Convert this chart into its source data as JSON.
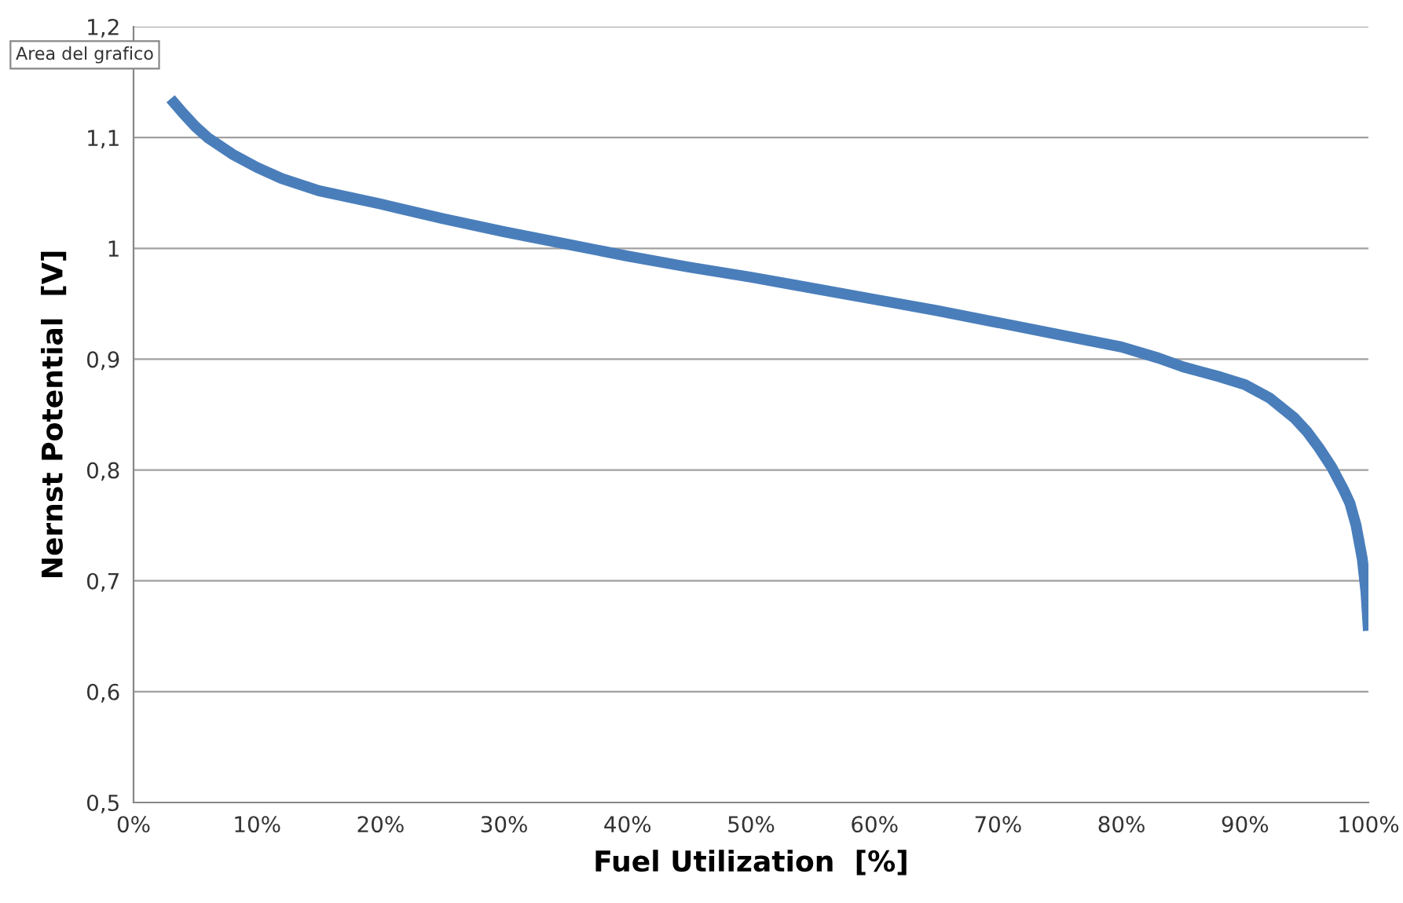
{
  "chart_data": {
    "type": "line",
    "xlabel": "Fuel Utilization  [%]",
    "ylabel": "Nernst Potential  [V]",
    "annotations": [
      "Area del grafico"
    ],
    "xlim": [
      0,
      100
    ],
    "xticks": [
      {
        "value": 0,
        "label": "0%"
      },
      {
        "value": 10,
        "label": "10%"
      },
      {
        "value": 20,
        "label": "20%"
      },
      {
        "value": 30,
        "label": "30%"
      },
      {
        "value": 40,
        "label": "40%"
      },
      {
        "value": 50,
        "label": "50%"
      },
      {
        "value": 60,
        "label": "60%"
      },
      {
        "value": 70,
        "label": "70%"
      },
      {
        "value": 80,
        "label": "80%"
      },
      {
        "value": 90,
        "label": "90%"
      },
      {
        "value": 100,
        "label": "100%"
      }
    ],
    "ylim": [
      0.5,
      1.2
    ],
    "yticks": [
      {
        "value": 0.5,
        "label": "0,5"
      },
      {
        "value": 0.6,
        "label": "0,6"
      },
      {
        "value": 0.7,
        "label": "0,7"
      },
      {
        "value": 0.8,
        "label": "0,8"
      },
      {
        "value": 0.9,
        "label": "0,9"
      },
      {
        "value": 1,
        "label": "1"
      },
      {
        "value": 1.1,
        "label": "1,1"
      },
      {
        "value": 1.2,
        "label": "1,2"
      }
    ],
    "grid": "y",
    "marker": "none",
    "line_style": "solid",
    "series": [
      {
        "color": "#4a7ebb",
        "x": [
          3,
          4,
          5,
          6,
          8,
          10,
          12,
          15,
          20,
          25,
          30,
          35,
          40,
          45,
          50,
          55,
          60,
          65,
          70,
          75,
          80,
          83,
          85,
          88,
          90,
          92,
          94,
          95,
          96,
          97,
          98,
          98.5,
          99,
          99.5,
          99.8,
          100
        ],
        "values": [
          1.135,
          1.122,
          1.11,
          1.1,
          1.085,
          1.073,
          1.063,
          1.052,
          1.04,
          1.027,
          1.015,
          1.004,
          0.993,
          0.983,
          0.974,
          0.964,
          0.954,
          0.944,
          0.933,
          0.922,
          0.911,
          0.901,
          0.893,
          0.884,
          0.877,
          0.865,
          0.847,
          0.835,
          0.82,
          0.803,
          0.782,
          0.77,
          0.75,
          0.72,
          0.69,
          0.655
        ]
      }
    ]
  }
}
